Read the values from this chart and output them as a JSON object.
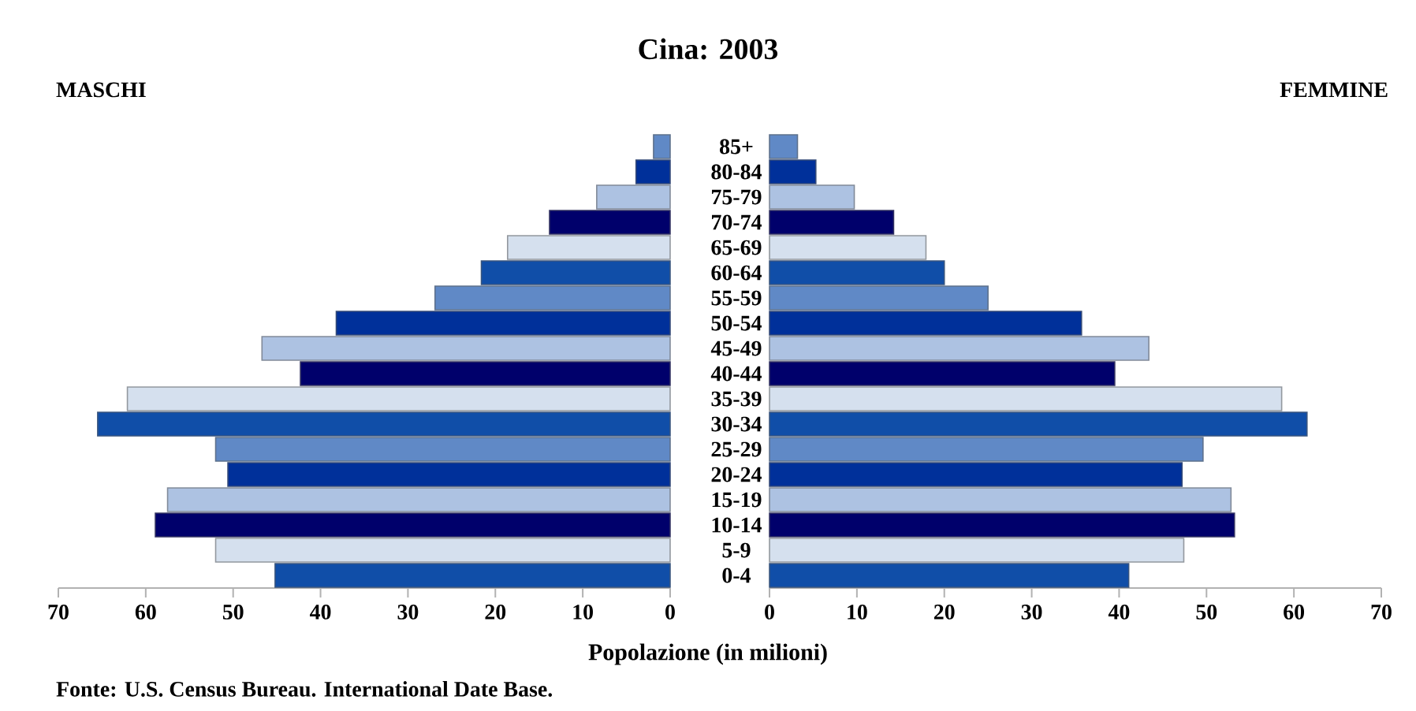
{
  "chart_data": [
    {
      "type": "bar",
      "orientation": "horizontal",
      "title": "Cina: 2003",
      "xlabel": "Popolazione (in milioni)",
      "annotations": [
        "MASCHI"
      ],
      "categories": [
        "85+",
        "80-84",
        "75-79",
        "70-74",
        "65-69",
        "60-64",
        "55-59",
        "50-54",
        "45-49",
        "40-44",
        "35-39",
        "30-34",
        "25-29",
        "20-24",
        "15-19",
        "10-14",
        "5-9",
        "0-4"
      ],
      "values": [
        1.9,
        3.9,
        8.4,
        13.8,
        18.6,
        21.6,
        26.9,
        38.2,
        46.7,
        42.3,
        62.1,
        65.5,
        52.0,
        50.6,
        57.5,
        58.9,
        52.0,
        45.2
      ],
      "colors": [
        "#6089c6",
        "#00309a",
        "#adc2e2",
        "#00006b",
        "#d5e0ee",
        "#104ea8",
        "#6089c6",
        "#00309a",
        "#adc2e2",
        "#00006b",
        "#d5e0ee",
        "#104ea8",
        "#6089c6",
        "#00309a",
        "#adc2e2",
        "#00006b",
        "#d5e0ee",
        "#104ea8"
      ],
      "xlim": [
        70,
        0
      ],
      "xticks": [
        70,
        60,
        50,
        40,
        30,
        20,
        10,
        0
      ]
    },
    {
      "type": "bar",
      "orientation": "horizontal",
      "annotations": [
        "FEMMINE",
        "Fonte: U.S. Census Bureau. International Date Base."
      ],
      "categories": [
        null,
        null,
        null,
        null,
        null,
        null,
        null,
        null,
        null,
        null,
        null,
        null,
        null,
        null,
        null,
        null,
        null,
        null
      ],
      "values": [
        3.2,
        5.3,
        9.7,
        14.2,
        17.9,
        20.0,
        25.0,
        35.7,
        43.4,
        39.5,
        58.6,
        61.5,
        49.6,
        47.2,
        52.8,
        53.2,
        47.4,
        41.1
      ],
      "colors": [
        "#6089c6",
        "#00309a",
        "#adc2e2",
        "#00006b",
        "#d5e0ee",
        "#104ea8",
        "#6089c6",
        "#00309a",
        "#adc2e2",
        "#00006b",
        "#d5e0ee",
        "#104ea8",
        "#6089c6",
        "#00309a",
        "#adc2e2",
        "#00006b",
        "#d5e0ee",
        "#104ea8"
      ],
      "xlim": [
        0,
        70
      ],
      "xticks": [
        0,
        10,
        20,
        30,
        40,
        50,
        60,
        70
      ]
    }
  ]
}
